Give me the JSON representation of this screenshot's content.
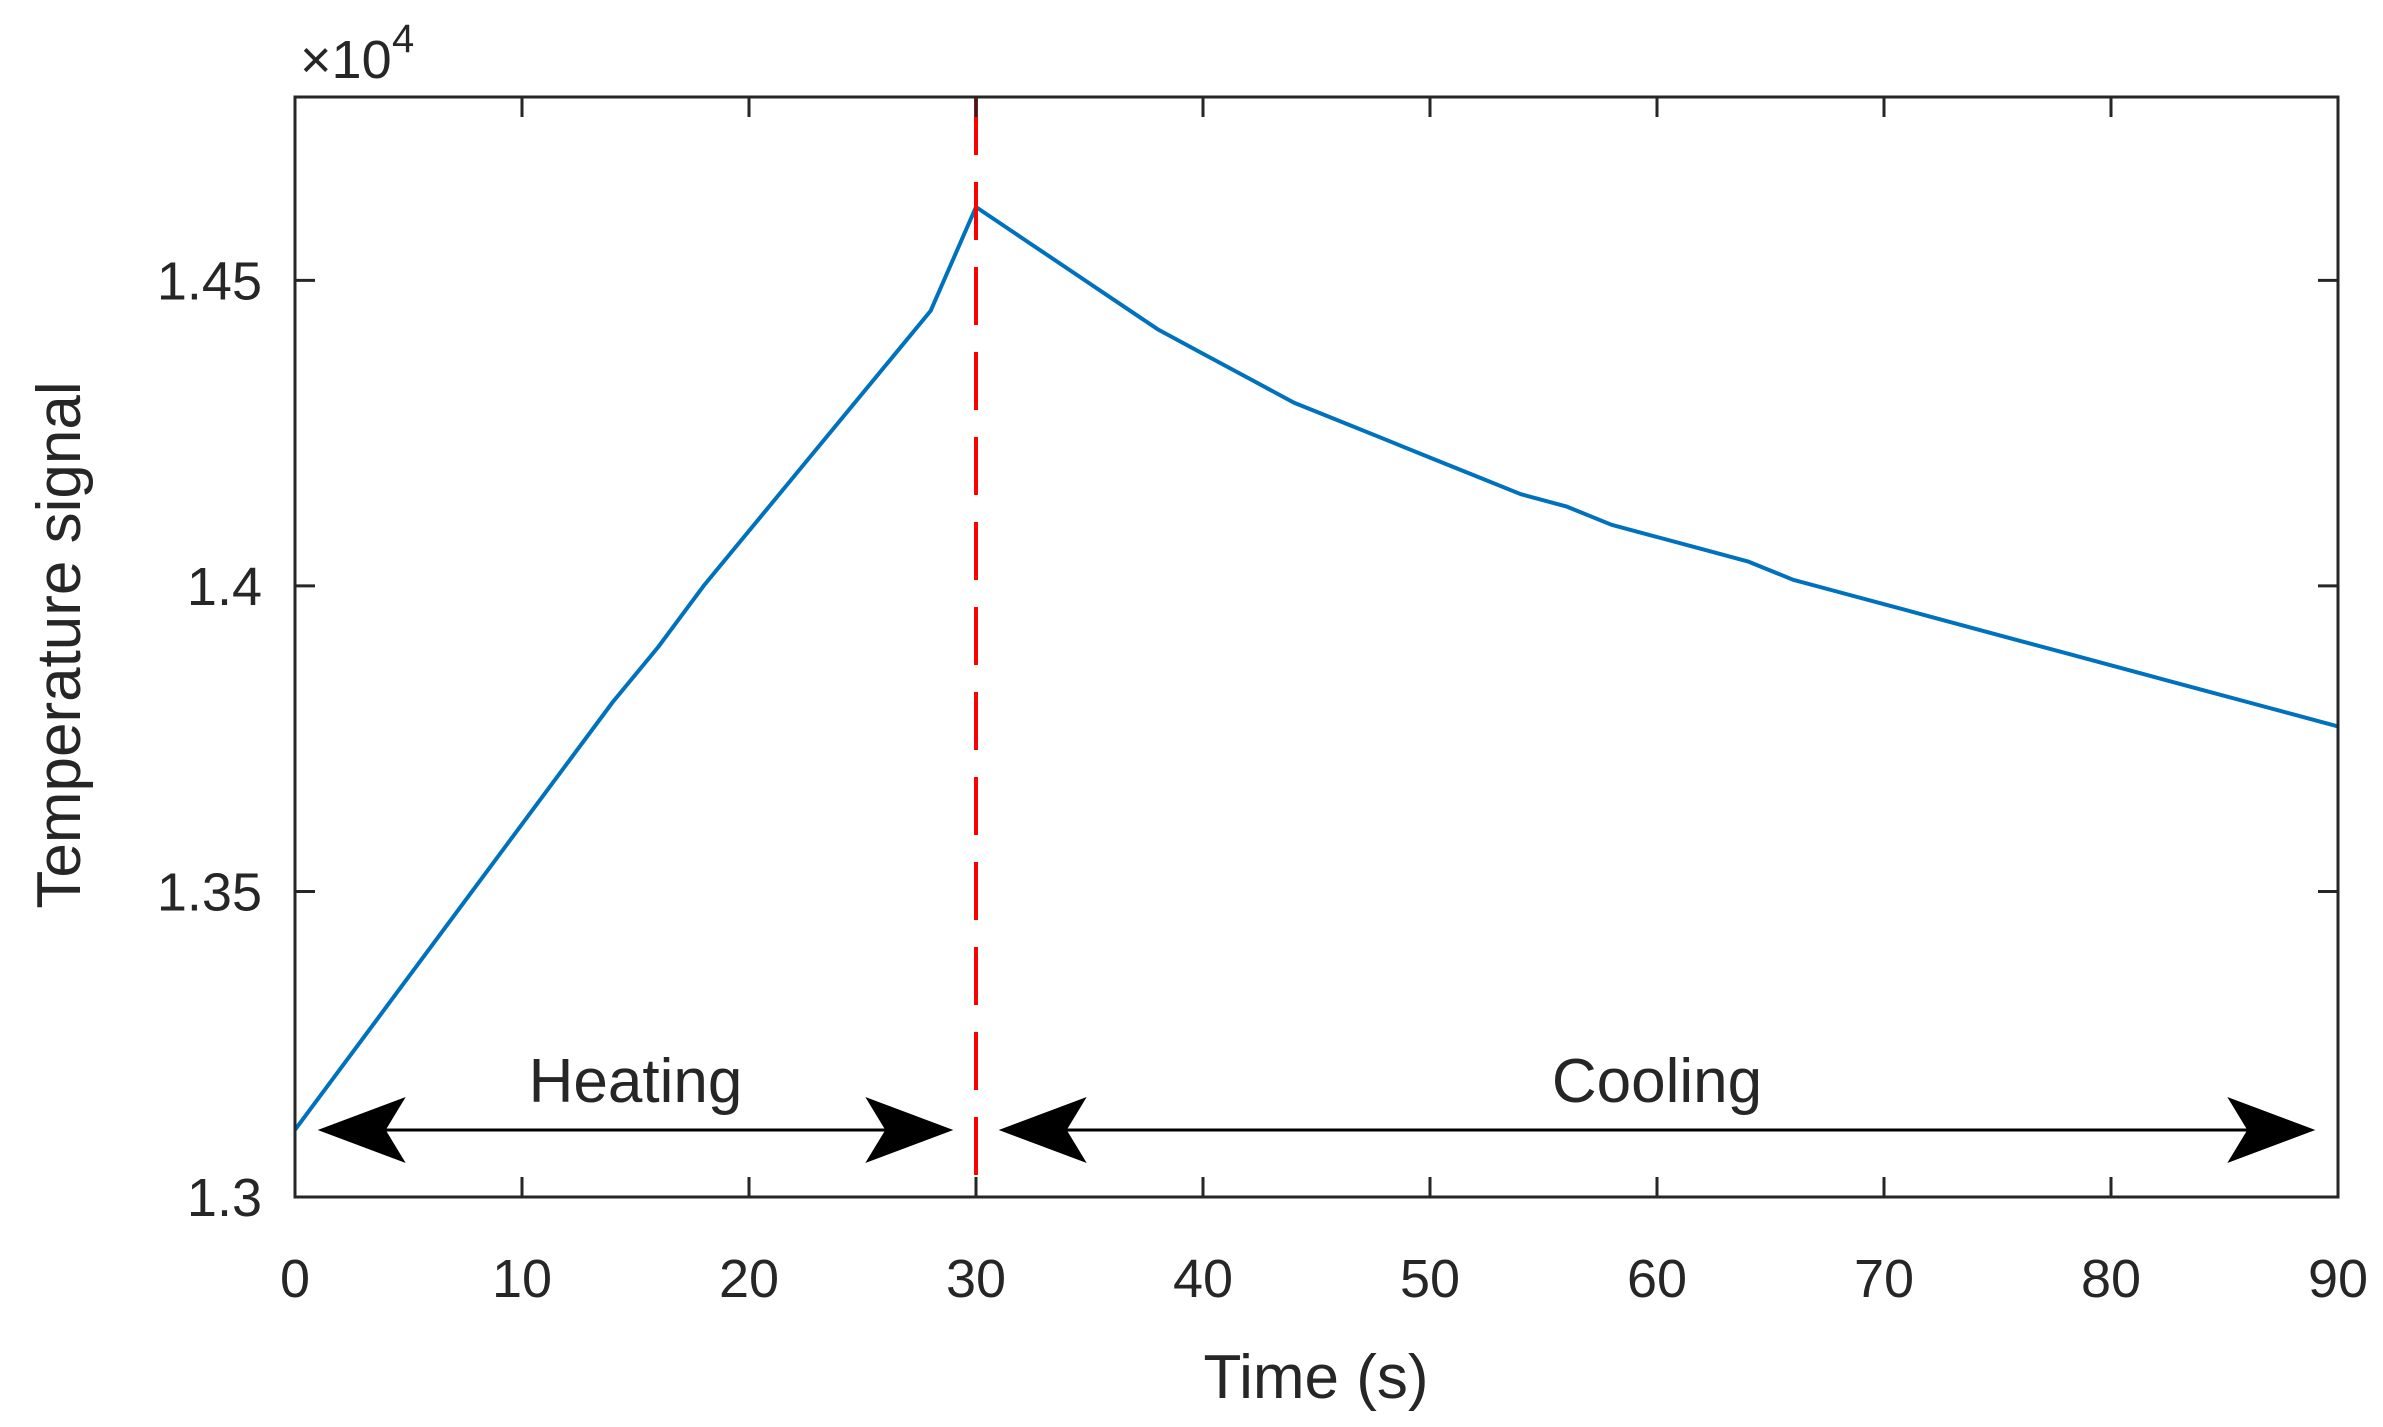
{
  "chart_data": {
    "type": "line",
    "title": "",
    "xlabel": "Time (s)",
    "ylabel": "Temperature signal",
    "xlim": [
      0,
      90
    ],
    "ylim": [
      1.3,
      1.48
    ],
    "xticks": [
      0,
      10,
      20,
      30,
      40,
      50,
      60,
      70,
      80,
      90
    ],
    "xtick_labels": [
      "0",
      "10",
      "20",
      "30",
      "40",
      "50",
      "60",
      "70",
      "80",
      "90"
    ],
    "yticks": [
      1.3,
      1.35,
      1.4,
      1.45
    ],
    "ytick_labels": [
      "1.3",
      "1.35",
      "1.4",
      "1.45"
    ],
    "y_exponent_label": "×10",
    "y_exponent_power": "4",
    "grid": false,
    "series": [
      {
        "name": "Temperature signal",
        "color": "#0072BD",
        "x": [
          0,
          2,
          4,
          6,
          8,
          10,
          12,
          14,
          16,
          18,
          20,
          22,
          24,
          26,
          28,
          30,
          32,
          34,
          36,
          38,
          40,
          42,
          44,
          46,
          48,
          50,
          52,
          54,
          56,
          58,
          60,
          62,
          64,
          66,
          68,
          70,
          72,
          74,
          76,
          78,
          80,
          82,
          84,
          86,
          88,
          90
        ],
        "values": [
          1.311,
          1.321,
          1.331,
          1.341,
          1.351,
          1.361,
          1.371,
          1.381,
          1.39,
          1.4,
          1.409,
          1.418,
          1.427,
          1.436,
          1.445,
          1.462,
          1.457,
          1.452,
          1.447,
          1.442,
          1.438,
          1.434,
          1.43,
          1.427,
          1.424,
          1.421,
          1.418,
          1.415,
          1.413,
          1.41,
          1.408,
          1.406,
          1.404,
          1.401,
          1.399,
          1.397,
          1.395,
          1.393,
          1.391,
          1.389,
          1.387,
          1.385,
          1.383,
          1.381,
          1.379,
          1.377
        ]
      }
    ],
    "vline": {
      "x": 30,
      "color": "#FF0000",
      "style": "dashed"
    },
    "annotations": [
      {
        "text": "Heating",
        "x_from": 1,
        "x_to": 29
      },
      {
        "text": "Cooling",
        "x_from": 31,
        "x_to": 89
      }
    ]
  }
}
